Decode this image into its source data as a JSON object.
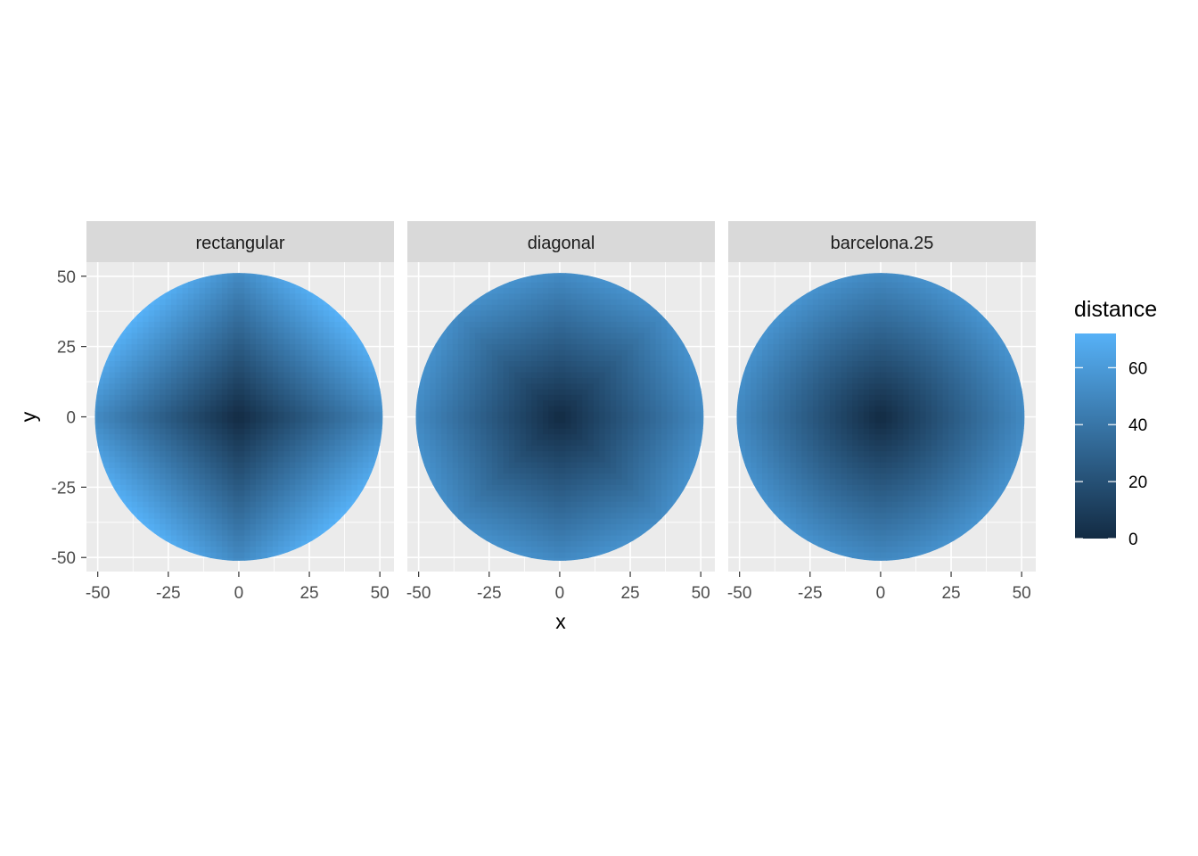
{
  "chart_data": {
    "type": "heatmap",
    "facet_by": "metric",
    "panels": [
      {
        "label": "rectangular"
      },
      {
        "label": "diagonal"
      },
      {
        "label": "barcelona.25"
      }
    ],
    "xlabel": "x",
    "ylabel": "y",
    "xlim": [
      -54,
      55
    ],
    "ylim": [
      -55,
      55
    ],
    "x_ticks": [
      -50,
      -25,
      0,
      25,
      50
    ],
    "y_ticks": [
      -50,
      -25,
      0,
      25,
      50
    ],
    "x_tick_labels": [
      "-50",
      "-25",
      "0",
      "25",
      "50"
    ],
    "y_tick_labels": [
      "-50",
      "-25",
      "0",
      "25",
      "50"
    ],
    "region": "disc centered at (0,0) with radius 51",
    "fill": "distance",
    "legend": {
      "title": "distance",
      "placement": "right",
      "breaks": [
        0,
        20,
        40,
        60
      ],
      "labels": [
        "0",
        "20",
        "40",
        "60"
      ],
      "limits": [
        0,
        72
      ],
      "low_color": "#132B43",
      "high_color": "#56B1F7"
    },
    "grid": true
  }
}
